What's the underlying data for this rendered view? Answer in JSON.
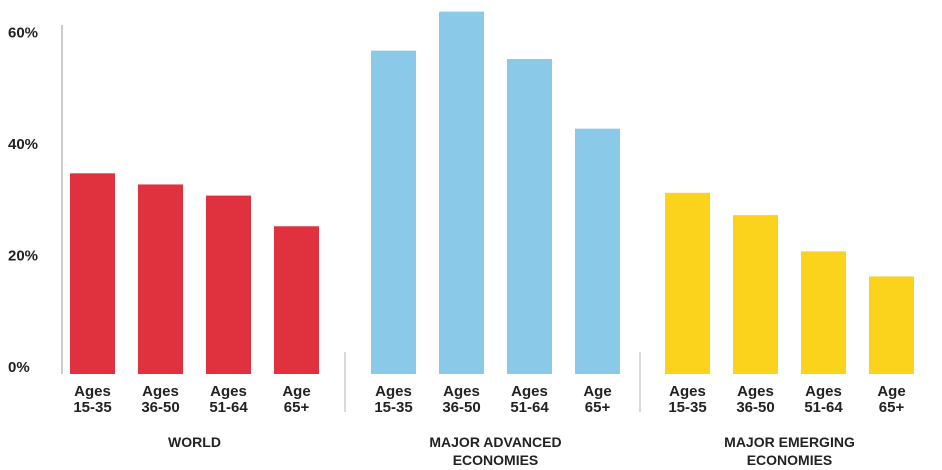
{
  "chart_data": {
    "type": "bar",
    "y_axis": {
      "ylim": [
        0,
        62
      ],
      "ticks": [
        {
          "value": 0,
          "label": "0%"
        },
        {
          "value": 20,
          "label": "20%"
        },
        {
          "value": 40,
          "label": "40%"
        },
        {
          "value": 60,
          "label": "60%"
        }
      ]
    },
    "grid": false,
    "groups": [
      {
        "label_lines": [
          "WORLD"
        ],
        "color": "#e0313e",
        "bars": [
          {
            "label_lines": [
              "Ages",
              "15-35"
            ],
            "value": 36
          },
          {
            "label_lines": [
              "Ages",
              "36-50"
            ],
            "value": 34
          },
          {
            "label_lines": [
              "Ages",
              "51-64"
            ],
            "value": 32
          },
          {
            "label_lines": [
              "Age",
              "65+"
            ],
            "value": 26.5
          }
        ]
      },
      {
        "label_lines": [
          "MAJOR ADVANCED",
          "ECONOMIES"
        ],
        "color": "#8ac9e8",
        "bars": [
          {
            "label_lines": [
              "Ages",
              "15-35"
            ],
            "value": 58
          },
          {
            "label_lines": [
              "Ages",
              "36-50"
            ],
            "value": 65
          },
          {
            "label_lines": [
              "Ages",
              "51-64"
            ],
            "value": 56.5
          },
          {
            "label_lines": [
              "Age",
              "65+"
            ],
            "value": 44
          }
        ]
      },
      {
        "label_lines": [
          "MAJOR EMERGING",
          "ECONOMIES"
        ],
        "color": "#fcd31c",
        "bars": [
          {
            "label_lines": [
              "Ages",
              "15-35"
            ],
            "value": 32.5
          },
          {
            "label_lines": [
              "Ages",
              "36-50"
            ],
            "value": 28.5
          },
          {
            "label_lines": [
              "Ages",
              "51-64"
            ],
            "value": 22
          },
          {
            "label_lines": [
              "Age",
              "65+"
            ],
            "value": 17.5
          }
        ]
      }
    ]
  }
}
